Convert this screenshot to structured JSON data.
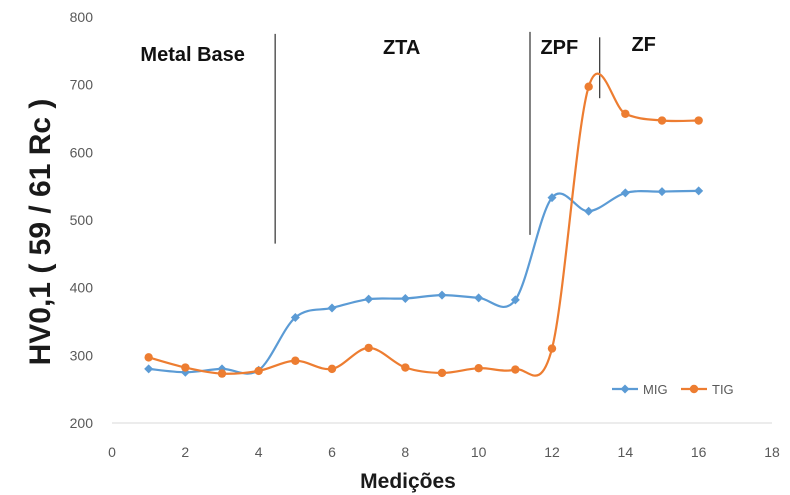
{
  "chart_data": {
    "type": "line",
    "xlabel": "Medições",
    "ylabel": "HV0,1 ( 59 / 61 Rc )",
    "xlim": [
      0,
      18
    ],
    "ylim": [
      200,
      800
    ],
    "xticks": [
      0,
      2,
      4,
      6,
      8,
      10,
      12,
      14,
      16,
      18
    ],
    "yticks": [
      200,
      300,
      400,
      500,
      600,
      700,
      800
    ],
    "grid": false,
    "legend_position": "bottom-right",
    "x": [
      1,
      2,
      3,
      4,
      5,
      6,
      7,
      8,
      9,
      10,
      11,
      12,
      13,
      14,
      15,
      16
    ],
    "series": [
      {
        "name": "MIG",
        "color": "#5b9bd5",
        "marker": "diamond",
        "values": [
          280,
          275,
          280,
          278,
          356,
          370,
          383,
          384,
          389,
          385,
          382,
          533,
          513,
          540,
          542,
          543
        ]
      },
      {
        "name": "TIG",
        "color": "#ed7d31",
        "marker": "circle",
        "values": [
          297,
          282,
          273,
          277,
          292,
          280,
          311,
          282,
          274,
          281,
          279,
          310,
          697,
          657,
          647,
          647
        ]
      }
    ],
    "regions": [
      {
        "label": "Metal Base",
        "x": 2.2,
        "y": 735
      },
      {
        "label": "ZTA",
        "x": 7.9,
        "y": 745
      },
      {
        "label": "ZPF",
        "x": 12.2,
        "y": 745
      },
      {
        "label": "ZF",
        "x": 14.5,
        "y": 750
      }
    ],
    "dividers": [
      {
        "x": 4.45,
        "y1": 465,
        "y2": 775
      },
      {
        "x": 11.4,
        "y1": 478,
        "y2": 778
      },
      {
        "x": 13.3,
        "y1": 680,
        "y2": 770
      }
    ]
  }
}
